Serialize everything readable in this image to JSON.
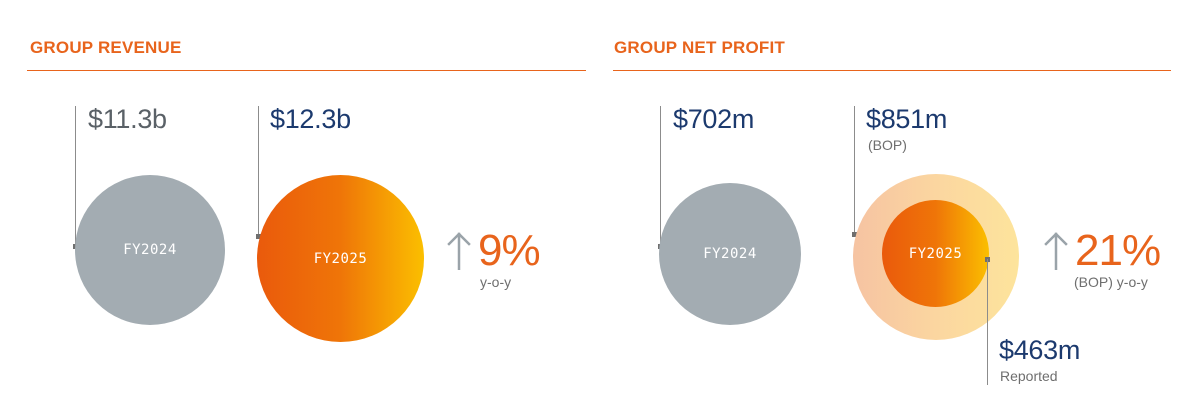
{
  "colors": {
    "accent_orange": "#e8641c",
    "navy": "#1c3a6e",
    "prior_grey": "#a3acb2",
    "prior_text": "#5a6167"
  },
  "revenue": {
    "title": "GROUP REVENUE",
    "prior": {
      "value": "$11.3b",
      "label": "FY2024"
    },
    "current": {
      "value": "$12.3b",
      "label": "FY2025"
    },
    "growth": {
      "value": "9%",
      "note": "y-o-y"
    }
  },
  "net_profit": {
    "title": "GROUP NET PROFIT",
    "prior": {
      "value": "$702m",
      "label": "FY2024"
    },
    "current": {
      "value": "$851m",
      "sublabel": "(BOP)",
      "label": "FY2025"
    },
    "reported": {
      "value": "$463m",
      "sublabel": "Reported"
    },
    "growth": {
      "value": "21%",
      "note": "(BOP) y-o-y"
    }
  },
  "chart_data": [
    {
      "type": "bubble",
      "title": "GROUP REVENUE",
      "categories": [
        "FY2024",
        "FY2025"
      ],
      "values": [
        11.3,
        12.3
      ],
      "unit": "$b",
      "growth_pct": 9
    },
    {
      "type": "bubble",
      "title": "GROUP NET PROFIT",
      "categories": [
        "FY2024",
        "FY2025"
      ],
      "series": [
        {
          "name": "BOP",
          "values": [
            702,
            851
          ]
        },
        {
          "name": "Reported",
          "values": [
            null,
            463
          ]
        }
      ],
      "unit": "$m",
      "growth_pct": 21
    }
  ]
}
